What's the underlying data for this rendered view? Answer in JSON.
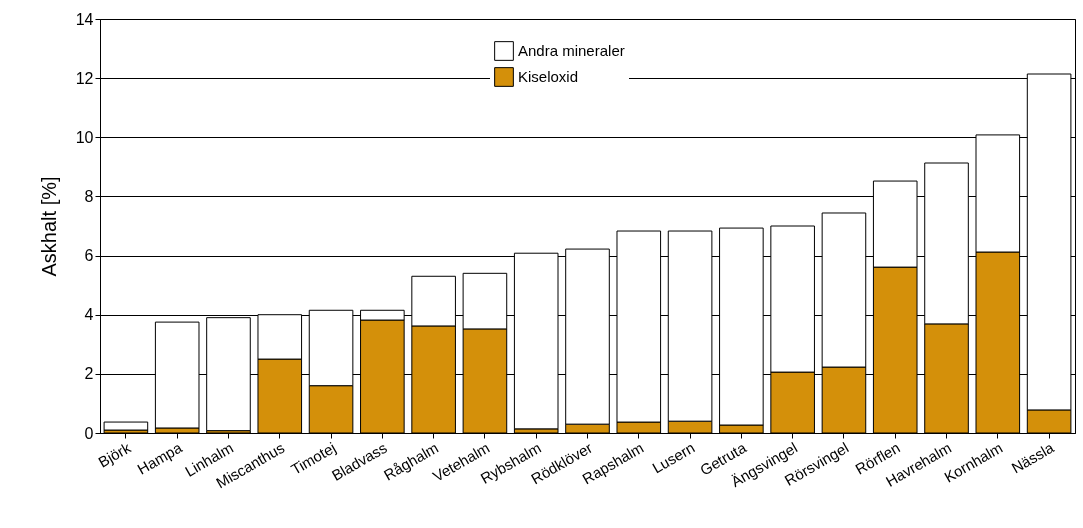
{
  "chart_data": {
    "type": "bar",
    "stacked": true,
    "ylabel": "Askhalt [%]",
    "categories": [
      "Björk",
      "Hampa",
      "Linhalm",
      "Miscanthus",
      "Timotej",
      "Bladvass",
      "Råghalm",
      "Vetehalm",
      "Rybshalm",
      "Rödklöver",
      "Rapshalm",
      "Lusern",
      "Getruta",
      "Ängsvingel",
      "Rörsvingel",
      "Rörflen",
      "Havrehalm",
      "Kornhalm",
      "Nässla"
    ],
    "series": [
      {
        "name": "Kiseloxid",
        "color": "#d4900a",
        "values": [
          0.1,
          0.17,
          0.08,
          2.5,
          1.6,
          3.82,
          3.62,
          3.52,
          0.14,
          0.3,
          0.37,
          0.4,
          0.27,
          2.06,
          2.23,
          5.61,
          3.69,
          6.12,
          0.78
        ]
      },
      {
        "name": "Andra mineraler",
        "color": "#ffffff",
        "values": [
          0.27,
          3.58,
          3.82,
          1.5,
          2.55,
          0.33,
          1.68,
          1.88,
          5.94,
          5.92,
          6.46,
          6.43,
          6.66,
          4.94,
          5.21,
          2.91,
          5.44,
          3.96,
          11.36
        ]
      }
    ],
    "ylim": [
      0,
      14
    ],
    "yticks": [
      0,
      2,
      4,
      6,
      8,
      10,
      12,
      14
    ],
    "grid": "y",
    "legend": "top"
  }
}
